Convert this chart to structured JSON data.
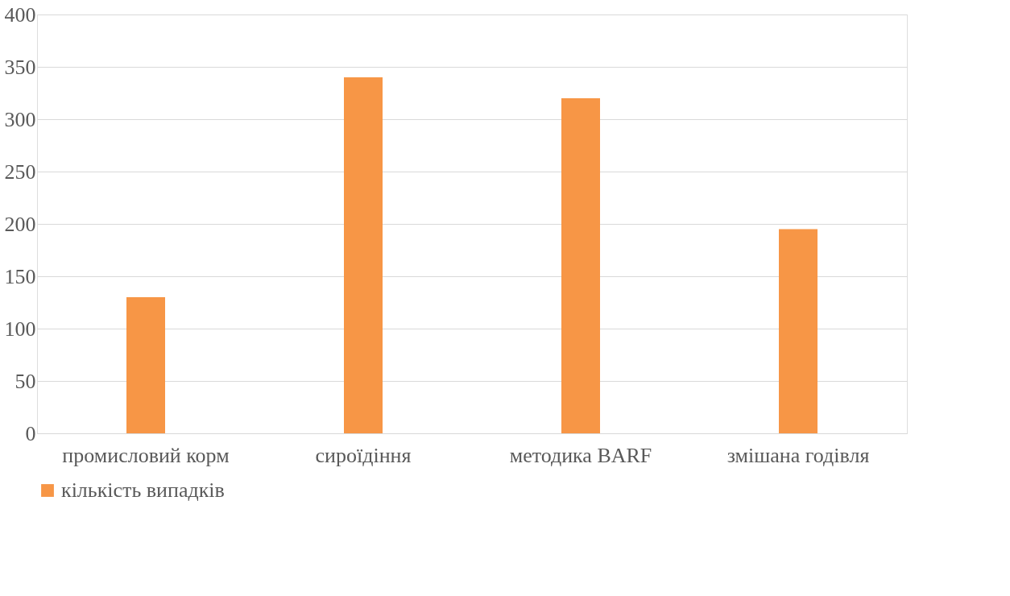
{
  "chart_data": {
    "type": "bar",
    "categories": [
      "промисловий корм",
      "сироїдіння",
      "методика BARF",
      "змішана годівля"
    ],
    "series": [
      {
        "name": "кількість випадків",
        "color": "#f79646",
        "values": [
          130,
          340,
          320,
          195
        ]
      }
    ],
    "ylim": [
      0,
      400
    ],
    "yticks": [
      0,
      50,
      100,
      150,
      200,
      250,
      300,
      350,
      400
    ],
    "grid": "y",
    "legend": "bottom"
  }
}
